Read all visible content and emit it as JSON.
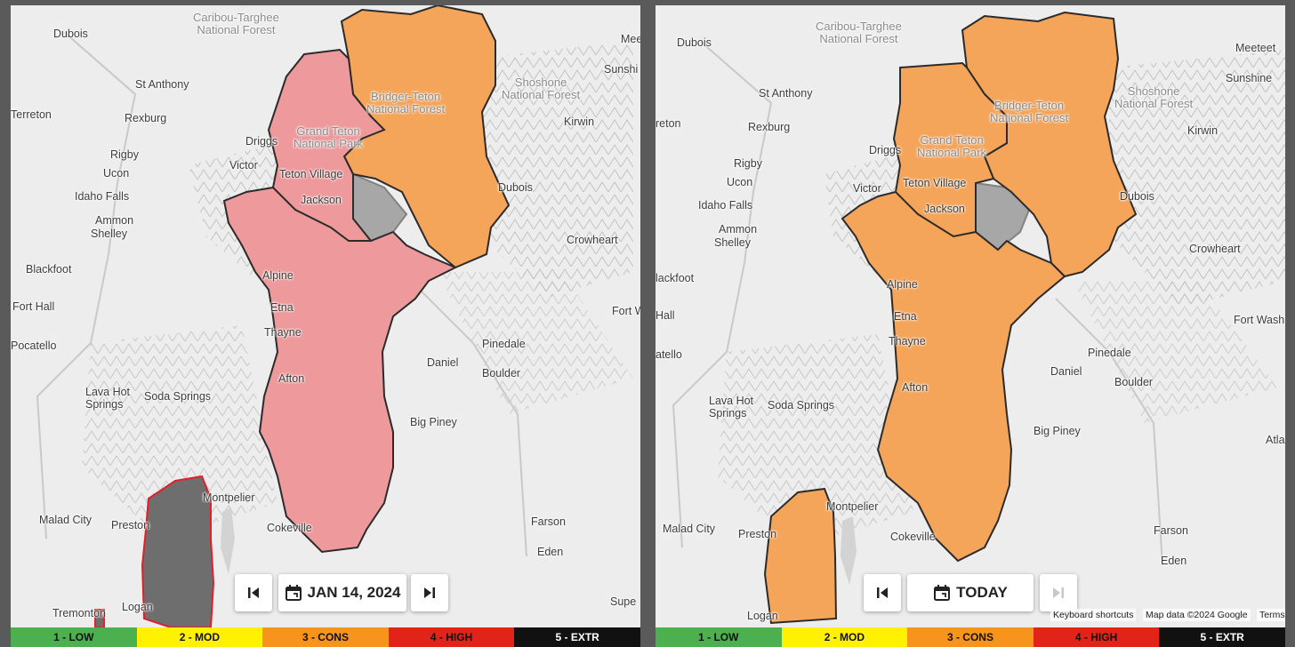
{
  "left_panel": {
    "date_label": "JAN 14, 2024",
    "places": {
      "caribou": "Caribou-Targhee\nNational Forest",
      "dubois_id": "Dubois",
      "st_anthony": "St Anthony",
      "terreton": "Terreton",
      "rexburg": "Rexburg",
      "rigby": "Rigby",
      "ucon": "Ucon",
      "idaho_falls": "Idaho Falls",
      "ammon": "Ammon",
      "shelley": "Shelley",
      "blackfoot": "Blackfoot",
      "fort_hall": "Fort Hall",
      "pocatello": "Pocatello",
      "lava_hot": "Lava Hot\nSprings",
      "soda_springs": "Soda Springs",
      "montpelier": "Montpelier",
      "malad": "Malad City",
      "preston": "Preston",
      "tremonton": "Tremonton",
      "logan": "Logan",
      "driggs": "Driggs",
      "victor": "Victor",
      "grand_teton": "Grand Teton\nNational Park",
      "teton_village": "Teton Village",
      "jackson": "Jackson",
      "alpine": "Alpine",
      "etna": "Etna",
      "thayne": "Thayne",
      "afton": "Afton",
      "cokeville": "Cokeville",
      "bridger": "Bridger-Teton\nNational Forest",
      "shoshone": "Shoshone\nNational Forest",
      "kirwin": "Kirwin",
      "dubois_wy": "Dubois",
      "crowheart": "Crowheart",
      "fort_w": "Fort W",
      "pinedale": "Pinedale",
      "daniel": "Daniel",
      "boulder": "Boulder",
      "big_piney": "Big Piney",
      "farson": "Farson",
      "eden": "Eden",
      "meeteetse": "Mee",
      "sunshine": "Sunshi",
      "superior": "Supe"
    }
  },
  "right_panel": {
    "date_label": "TODAY",
    "attribution": {
      "shortcuts": "Keyboard shortcuts",
      "map_data": "Map data ©2024 Google",
      "terms": "Terms"
    },
    "places": {
      "caribou": "Caribou-Targhee\nNational Forest",
      "dubois_id": "Dubois",
      "st_anthony": "St Anthony",
      "terreton": "reton",
      "rexburg": "Rexburg",
      "rigby": "Rigby",
      "ucon": "Ucon",
      "idaho_falls": "Idaho Falls",
      "ammon": "Ammon",
      "shelley": "Shelley",
      "blackfoot": "lackfoot",
      "fort_hall": "Hall",
      "pocatello": "atello",
      "lava_hot": "Lava Hot\nSprings",
      "soda_springs": "Soda Springs",
      "montpelier": "Montpelier",
      "malad": "Malad City",
      "preston": "Preston",
      "logan": "Logan",
      "driggs": "Driggs",
      "victor": "Victor",
      "grand_teton": "Grand Teton\nNational Park",
      "teton_village": "Teton Village",
      "jackson": "Jackson",
      "alpine": "Alpine",
      "etna": "Etna",
      "thayne": "Thayne",
      "afton": "Afton",
      "cokeville": "Cokeville",
      "bridger": "Bridger-Teton\nNational Forest",
      "shoshone": "Shoshone\nNational Forest",
      "kirwin": "Kirwin",
      "dubois_wy": "Dubois",
      "crowheart": "Crowheart",
      "fort_wash": "Fort Washi",
      "pinedale": "Pinedale",
      "daniel": "Daniel",
      "boulder": "Boulder",
      "big_piney": "Big Piney",
      "farson": "Farson",
      "eden": "Eden",
      "meeteetse": "Meeteet",
      "sunshine": "Sunshine",
      "atla": "Atla"
    }
  },
  "legend": [
    {
      "label": "1 - LOW",
      "bg": "#4caf50",
      "fg": "#111"
    },
    {
      "label": "2 - MOD",
      "bg": "#fff200",
      "fg": "#111"
    },
    {
      "label": "3 - CONS",
      "bg": "#f7941d",
      "fg": "#111"
    },
    {
      "label": "4 - HIGH",
      "bg": "#e2231a",
      "fg": "#111"
    },
    {
      "label": "5 - EXTR",
      "bg": "#111111",
      "fg": "#ffffff"
    }
  ],
  "colors": {
    "considerable": "#f5a55a",
    "high": "#ee9a9c",
    "no_rating": "#6e6e6e",
    "outline": "#2b2b2b",
    "high_outline": "#e0202a"
  },
  "icons": {
    "first": "skip-back-icon",
    "last": "skip-forward-icon",
    "calendar": "calendar-icon"
  }
}
